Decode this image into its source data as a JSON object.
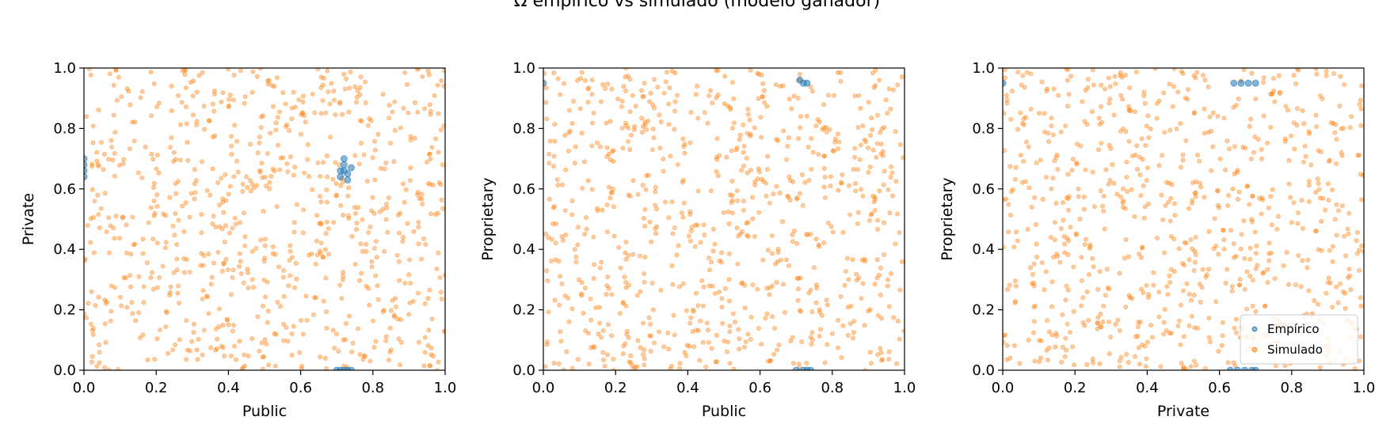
{
  "figure": {
    "title": "Ω empírico vs simulado (modelo ganador)"
  },
  "legend": {
    "entries": [
      "Empírico",
      "Simulado"
    ],
    "placement": "lower-right",
    "panel": 2
  },
  "colors": {
    "empirico": "#1f77b4",
    "simulado": "#ff7f0e"
  },
  "chart_data": [
    {
      "type": "scatter",
      "xlabel": "Public",
      "ylabel": "Private",
      "xlim": [
        0,
        1
      ],
      "ylim": [
        0,
        1
      ],
      "xticks": [
        "0.0",
        "0.2",
        "0.4",
        "0.6",
        "0.8",
        "1.0"
      ],
      "yticks": [
        "0.0",
        "0.2",
        "0.4",
        "0.6",
        "0.8",
        "1.0"
      ],
      "series": [
        {
          "name": "Empírico",
          "points": [
            [
              0.0,
              0.66
            ],
            [
              0.0,
              0.68
            ],
            [
              0.0,
              0.64
            ],
            [
              0.0,
              0.7
            ],
            [
              0.71,
              0.66
            ],
            [
              0.72,
              0.68
            ],
            [
              0.73,
              0.65
            ],
            [
              0.72,
              0.7
            ],
            [
              0.74,
              0.67
            ],
            [
              0.71,
              0.64
            ],
            [
              0.73,
              0.63
            ],
            [
              0.72,
              0.66
            ],
            [
              0.7,
              0.0
            ],
            [
              0.72,
              0.0
            ],
            [
              0.74,
              0.0
            ],
            [
              0.73,
              0.0
            ],
            [
              0.71,
              0.0
            ]
          ]
        },
        {
          "name": "Simulado",
          "random_uniform": {
            "n": 800,
            "seed": 11
          }
        }
      ]
    },
    {
      "type": "scatter",
      "xlabel": "Public",
      "ylabel": "Proprietary",
      "xlim": [
        0,
        1
      ],
      "ylim": [
        0,
        1
      ],
      "xticks": [
        "0.0",
        "0.2",
        "0.4",
        "0.6",
        "0.8",
        "1.0"
      ],
      "yticks": [
        "0.0",
        "0.2",
        "0.4",
        "0.6",
        "0.8",
        "1.0"
      ],
      "series": [
        {
          "name": "Empírico",
          "points": [
            [
              0.0,
              0.95
            ],
            [
              0.72,
              0.95
            ],
            [
              0.73,
              0.95
            ],
            [
              0.71,
              0.96
            ],
            [
              0.7,
              0.0
            ],
            [
              0.72,
              0.0
            ],
            [
              0.74,
              0.0
            ],
            [
              0.73,
              0.0
            ]
          ]
        },
        {
          "name": "Simulado",
          "random_uniform": {
            "n": 800,
            "seed": 29
          }
        }
      ]
    },
    {
      "type": "scatter",
      "xlabel": "Private",
      "ylabel": "Proprietary",
      "xlim": [
        0,
        1
      ],
      "ylim": [
        0,
        1
      ],
      "xticks": [
        "0.0",
        "0.2",
        "0.4",
        "0.6",
        "0.8",
        "1.0"
      ],
      "yticks": [
        "0.0",
        "0.2",
        "0.4",
        "0.6",
        "0.8",
        "1.0"
      ],
      "series": [
        {
          "name": "Empírico",
          "points": [
            [
              0.0,
              0.95
            ],
            [
              0.64,
              0.95
            ],
            [
              0.66,
              0.95
            ],
            [
              0.68,
              0.95
            ],
            [
              0.7,
              0.95
            ],
            [
              0.63,
              0.0
            ],
            [
              0.65,
              0.0
            ],
            [
              0.67,
              0.0
            ],
            [
              0.69,
              0.0
            ],
            [
              0.7,
              0.0
            ]
          ]
        },
        {
          "name": "Simulado",
          "random_uniform": {
            "n": 800,
            "seed": 47
          }
        }
      ]
    }
  ]
}
